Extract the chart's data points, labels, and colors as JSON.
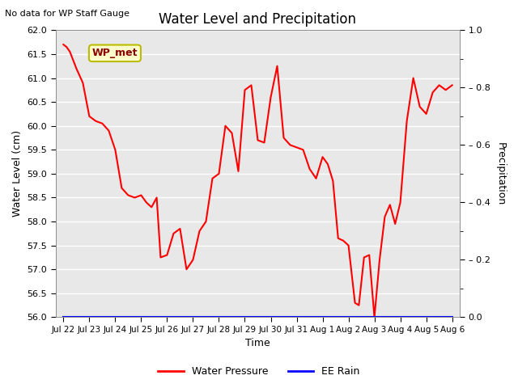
{
  "title": "Water Level and Precipitation",
  "top_left_text": "No data for WP Staff Gauge",
  "ylabel_left": "Water Level (cm)",
  "ylabel_right": "Precipitation",
  "xlabel": "Time",
  "legend_labels": [
    "Water Pressure",
    "EE Rain"
  ],
  "annotation_label": "WP_met",
  "annotation_bg": "#ffffcc",
  "annotation_border": "#bbbb00",
  "ylim_left": [
    56.0,
    62.0
  ],
  "ylim_right": [
    0.0,
    1.0
  ],
  "bg_color": "#e8e8e8",
  "x_tick_labels": [
    "Jul 22",
    "Jul 23",
    "Jul 24",
    "Jul 25",
    "Jul 26",
    "Jul 27",
    "Jul 28",
    "Jul 29",
    "Jul 30",
    "Jul 31",
    "Aug 1",
    "Aug 2",
    "Aug 3",
    "Aug 4",
    "Aug 5",
    "Aug 6"
  ],
  "right_yticks": [
    0.0,
    0.2,
    0.4,
    0.6,
    0.8,
    1.0
  ],
  "right_ytick_labels": [
    "0.0",
    "– 0.2",
    "– 0.4",
    "– 0.6",
    "– 0.8",
    "1.0"
  ],
  "line_color": "red",
  "line_width": 1.5,
  "wp_x": [
    0.0,
    0.12,
    0.25,
    0.5,
    0.75,
    1.0,
    1.25,
    1.5,
    1.75,
    2.0,
    2.25,
    2.5,
    2.75,
    3.0,
    3.2,
    3.4,
    3.6,
    3.75,
    4.0,
    4.25,
    4.5,
    4.75,
    5.0,
    5.25,
    5.5,
    5.75,
    6.0,
    6.25,
    6.5,
    6.75,
    7.0,
    7.25,
    7.5,
    7.75,
    8.0,
    8.25,
    8.5,
    8.75,
    9.0,
    9.25,
    9.5,
    9.75,
    10.0,
    10.2,
    10.4,
    10.6,
    10.8,
    11.0,
    11.25,
    11.4,
    11.6,
    11.8,
    12.0,
    12.2,
    12.4,
    12.6,
    12.8,
    13.0,
    13.25,
    13.5,
    13.75,
    14.0,
    14.25,
    14.5,
    14.75,
    15.0
  ],
  "wp_y": [
    61.7,
    61.65,
    61.55,
    61.2,
    60.9,
    60.2,
    60.1,
    60.05,
    59.9,
    59.5,
    58.7,
    58.55,
    58.5,
    58.55,
    58.4,
    58.3,
    58.5,
    57.25,
    57.3,
    57.75,
    57.85,
    57.0,
    57.2,
    57.8,
    58.0,
    58.9,
    59.0,
    60.0,
    59.85,
    59.05,
    60.75,
    60.85,
    59.7,
    59.65,
    60.6,
    61.25,
    59.75,
    59.6,
    59.55,
    59.5,
    59.1,
    58.9,
    59.35,
    59.2,
    58.85,
    57.65,
    57.6,
    57.5,
    56.3,
    56.25,
    57.25,
    57.3,
    56.0,
    57.2,
    58.1,
    58.35,
    57.95,
    58.4,
    60.1,
    61.0,
    60.4,
    60.25,
    60.7,
    60.85,
    60.75,
    60.85
  ]
}
